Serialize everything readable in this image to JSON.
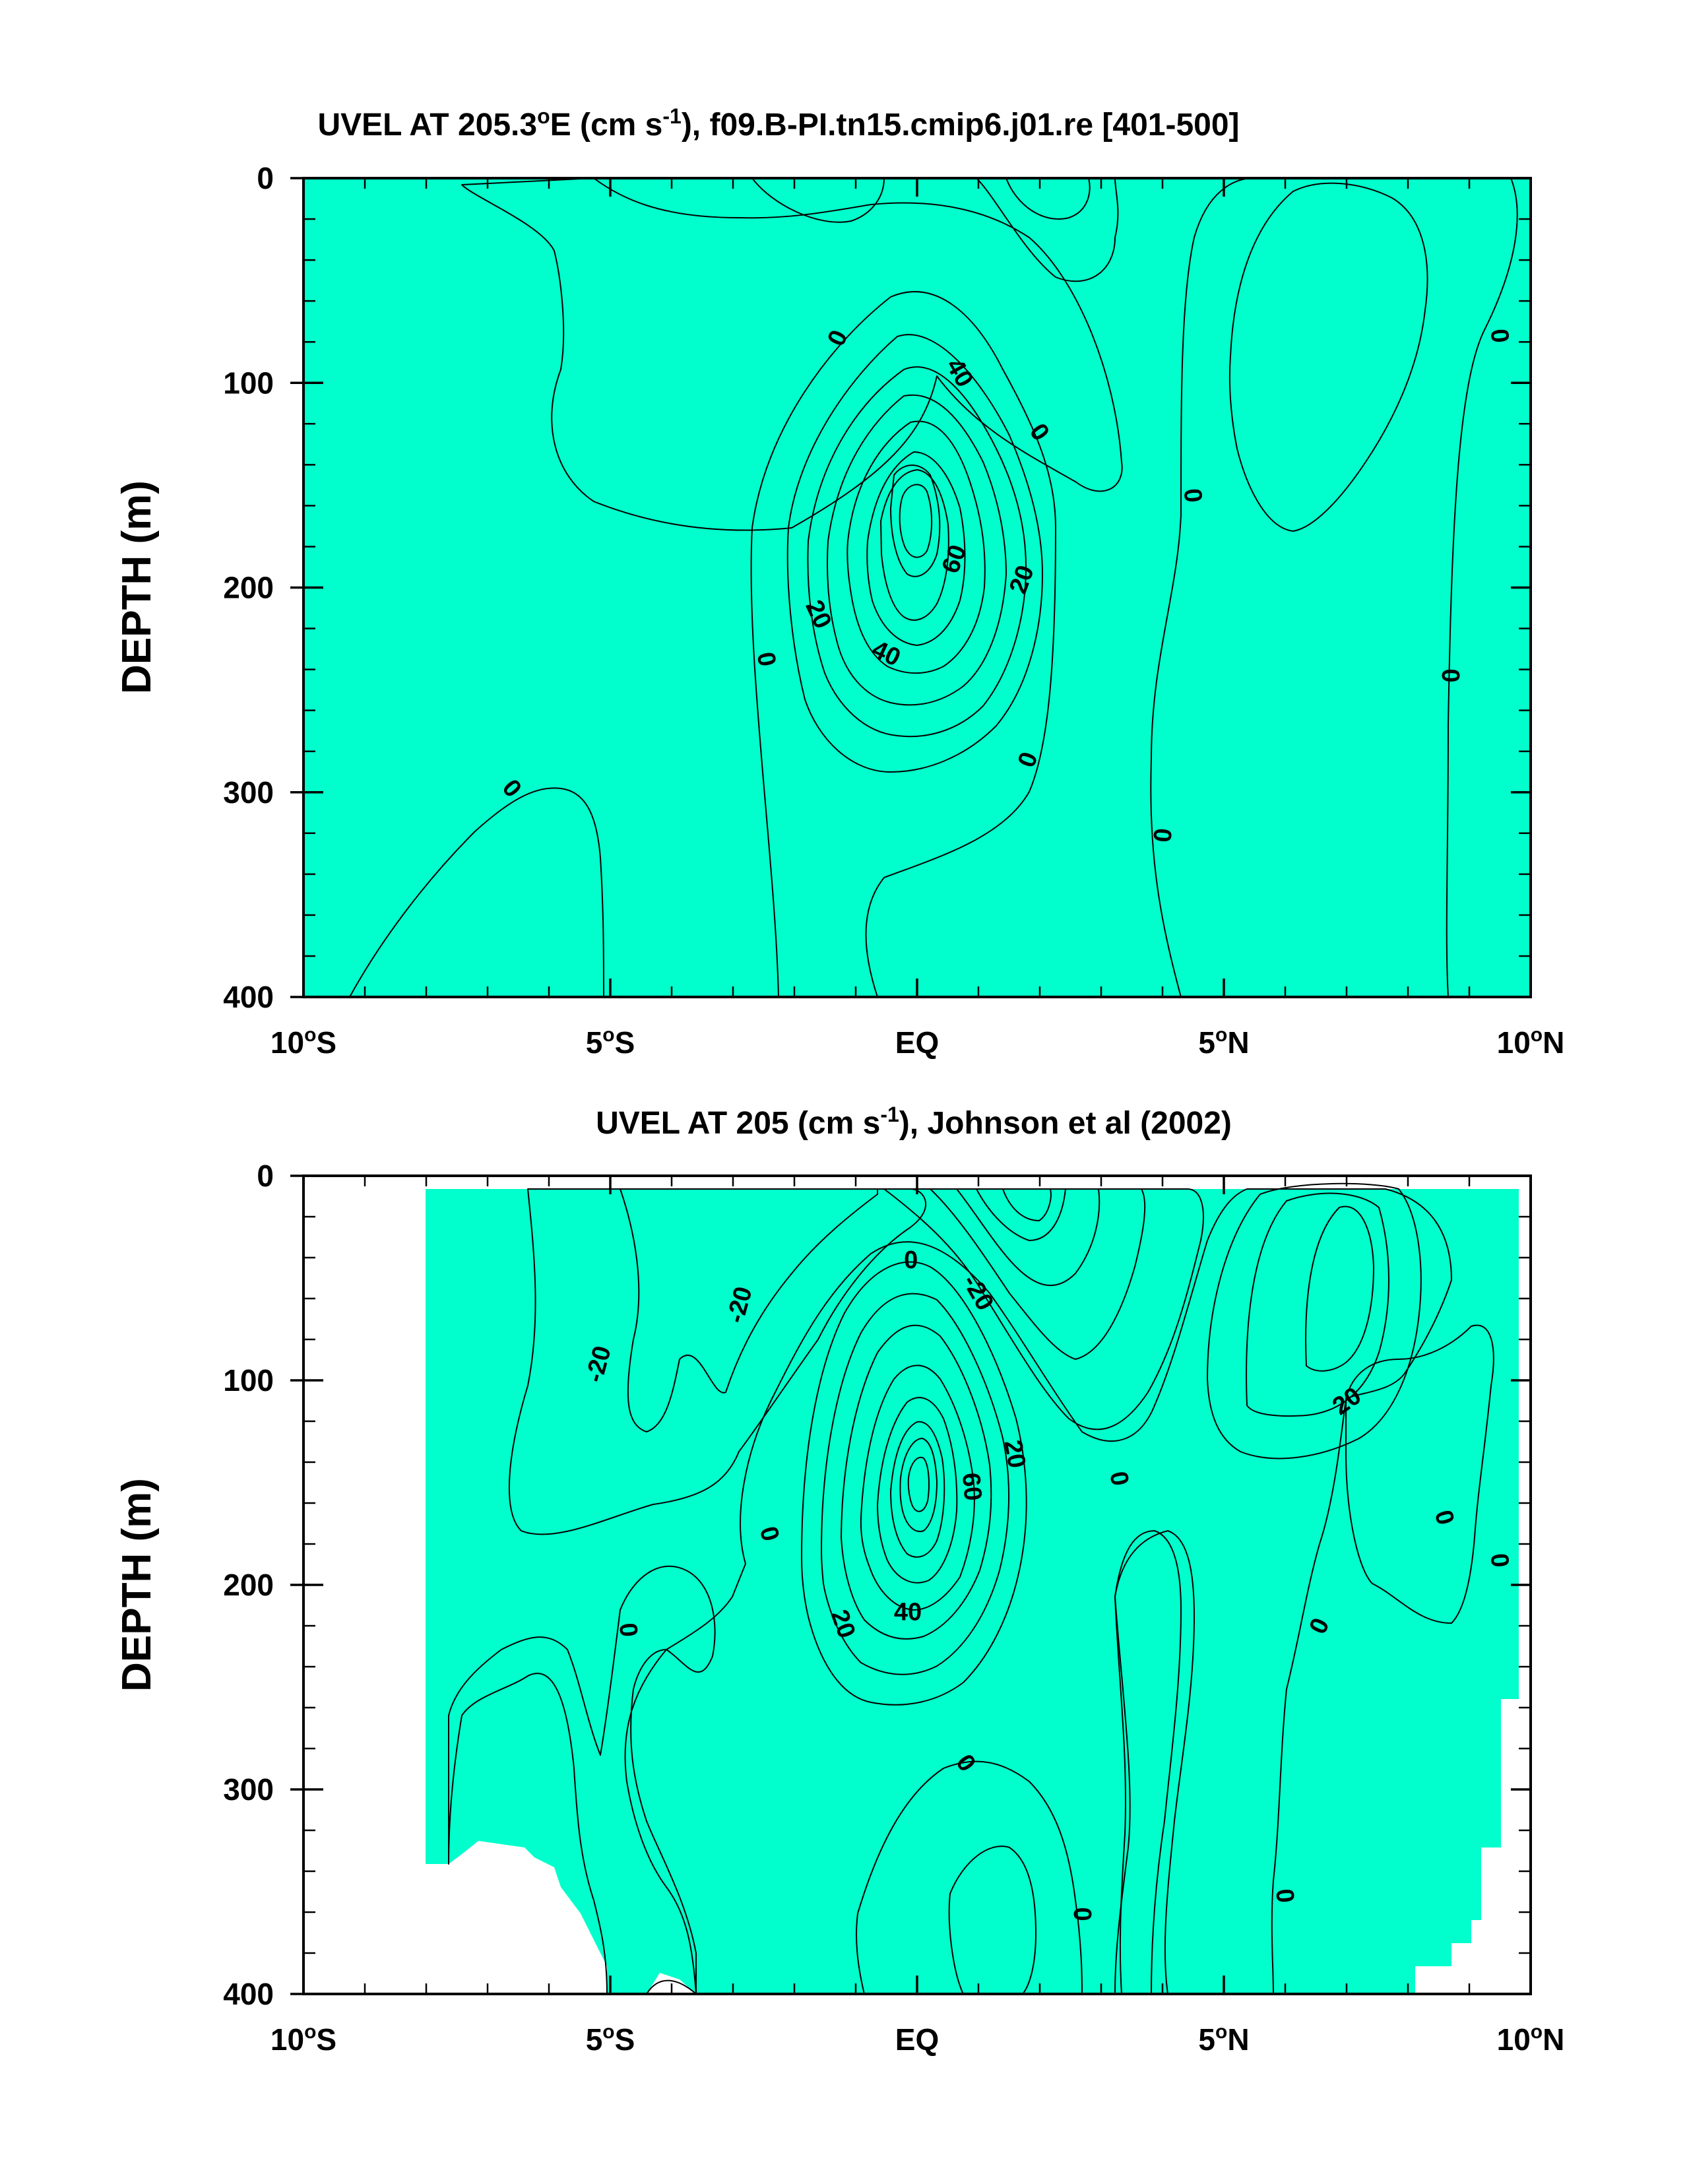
{
  "colors": {
    "le_m40": "#0041ff",
    "m40_m30": "#0080ff",
    "m30_m20": "#00bfff",
    "m20_m10": "#33e6ff",
    "m10_0": "#00ffee",
    "0_10": "#00ffcc",
    "10_20": "#1cf05a",
    "20_30": "#5cff00",
    "30_40": "#ffff00",
    "40_50": "#ffdf20",
    "50_60": "#ffa437",
    "60_70": "#ff8a25",
    "70_80": "#ff5a0a",
    "gt_80": "#ee0000",
    "core": "#d01a10"
  },
  "chart_data": [
    {
      "type": "contour",
      "title_parts": [
        "UVEL AT 205.3",
        "o",
        "E (cm s",
        "-1",
        "), f09.B-PI.tn15.cmip6.j01.re [401-500]"
      ],
      "ylabel": "DEPTH (m)",
      "xlim": [
        -10,
        10
      ],
      "ylim": [
        400,
        0
      ],
      "x_ticks": [
        {
          "v": -10,
          "num": "10",
          "deg": "o",
          "hem": "S"
        },
        {
          "v": -5,
          "num": "5",
          "deg": "o",
          "hem": "S"
        },
        {
          "v": 0,
          "num": "EQ",
          "deg": "",
          "hem": ""
        },
        {
          "v": 5,
          "num": "5",
          "deg": "o",
          "hem": "N"
        },
        {
          "v": 10,
          "num": "10",
          "deg": "o",
          "hem": "N"
        }
      ],
      "y_ticks": [
        0,
        100,
        200,
        300,
        400
      ],
      "contour_labels": [
        {
          "lat": -1.3,
          "depth": 78,
          "text": "0",
          "rot": -65
        },
        {
          "lat": 0.7,
          "depth": 95,
          "text": "40",
          "rot": 60
        },
        {
          "lat": 2.0,
          "depth": 124,
          "text": "0",
          "rot": 55
        },
        {
          "lat": 0.6,
          "depth": 186,
          "text": "60",
          "rot": -70
        },
        {
          "lat": 1.7,
          "depth": 196,
          "text": "20",
          "rot": -70
        },
        {
          "lat": -1.6,
          "depth": 213,
          "text": "20",
          "rot": 65
        },
        {
          "lat": -0.5,
          "depth": 232,
          "text": "40",
          "rot": 25
        },
        {
          "lat": -2.45,
          "depth": 235,
          "text": "0",
          "rot": 80
        },
        {
          "lat": 1.8,
          "depth": 284,
          "text": "0",
          "rot": -70
        },
        {
          "lat": -6.6,
          "depth": 298,
          "text": "0",
          "rot": 50
        },
        {
          "lat": 4.5,
          "depth": 155,
          "text": "0",
          "rot": 85
        },
        {
          "lat": 9.5,
          "depth": 77,
          "text": "0",
          "rot": 85
        },
        {
          "lat": 8.7,
          "depth": 243,
          "text": "0",
          "rot": 90
        },
        {
          "lat": 4.0,
          "depth": 321,
          "text": "0",
          "rot": 95
        }
      ]
    },
    {
      "type": "contour",
      "title_parts": [
        "UVEL AT 205 (cm s",
        "-1",
        "), Johnson et al (2002)"
      ],
      "ylabel": "DEPTH (m)",
      "xlim": [
        -10,
        10
      ],
      "ylim": [
        400,
        0
      ],
      "x_ticks": [
        {
          "v": -10,
          "num": "10",
          "deg": "o",
          "hem": "S"
        },
        {
          "v": -5,
          "num": "5",
          "deg": "o",
          "hem": "S"
        },
        {
          "v": 0,
          "num": "EQ",
          "deg": "",
          "hem": ""
        },
        {
          "v": 5,
          "num": "5",
          "deg": "o",
          "hem": "N"
        },
        {
          "v": 10,
          "num": "10",
          "deg": "o",
          "hem": "N"
        }
      ],
      "y_ticks": [
        0,
        100,
        200,
        300,
        400
      ],
      "contour_labels": [
        {
          "lat": -5.2,
          "depth": 92,
          "text": "-20",
          "rot": -75
        },
        {
          "lat": -2.9,
          "depth": 63,
          "text": "-20",
          "rot": -75
        },
        {
          "lat": 1.0,
          "depth": 57,
          "text": "-20",
          "rot": 60
        },
        {
          "lat": -0.1,
          "depth": 41,
          "text": "0",
          "rot": 0
        },
        {
          "lat": 1.6,
          "depth": 136,
          "text": "20",
          "rot": 80
        },
        {
          "lat": 0.9,
          "depth": 152,
          "text": "60",
          "rot": 85
        },
        {
          "lat": -0.15,
          "depth": 213,
          "text": "40",
          "rot": 0
        },
        {
          "lat": -1.2,
          "depth": 219,
          "text": "20",
          "rot": 70
        },
        {
          "lat": 3.3,
          "depth": 148,
          "text": "0",
          "rot": 80
        },
        {
          "lat": 7.0,
          "depth": 110,
          "text": "20",
          "rot": -35
        },
        {
          "lat": -2.4,
          "depth": 175,
          "text": "0",
          "rot": 75
        },
        {
          "lat": -4.7,
          "depth": 222,
          "text": "0",
          "rot": 85
        },
        {
          "lat": 8.6,
          "depth": 167,
          "text": "0",
          "rot": 75
        },
        {
          "lat": 9.5,
          "depth": 188,
          "text": "0",
          "rot": 85
        },
        {
          "lat": 6.55,
          "depth": 220,
          "text": "0",
          "rot": -65
        },
        {
          "lat": 0.8,
          "depth": 287,
          "text": "0",
          "rot": 55
        },
        {
          "lat": 2.7,
          "depth": 361,
          "text": "0",
          "rot": 90
        },
        {
          "lat": 6.0,
          "depth": 352,
          "text": "0",
          "rot": 85
        }
      ]
    }
  ]
}
